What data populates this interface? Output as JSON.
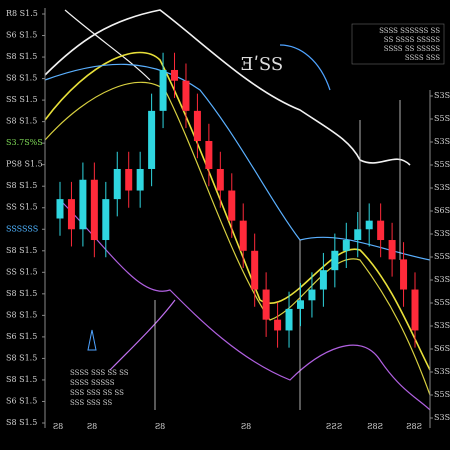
{
  "chart_data": {
    "type": "candlestick",
    "title": "ƎʹSS",
    "note_lines": [
      "SSSS SSSSSS SS",
      "SS SSSS SSSSS",
      "SSSS SS SSSSS",
      "SSSS SSS"
    ],
    "footnote_lines": [
      "SSSS SSS SS SS",
      "SSSS SSSSS",
      "SSS SSS SS SS",
      "SSS SSS SS"
    ],
    "x_labels": [
      "Ƨ8",
      "Ƨ8",
      "Ƨ8",
      "Ƨ8",
      "ƧƧƧ",
      "Ƨ8Ƨ",
      "Ƨ8Ƨ"
    ],
    "ylim": [
      1,
      20
    ],
    "yticks": [
      {
        "value": 20,
        "label": "R8 S1.5"
      },
      {
        "value": 19,
        "label": "S6 S1.5"
      },
      {
        "value": 18,
        "label": "S8 S1.5"
      },
      {
        "value": 17,
        "label": "S8 S1.5"
      },
      {
        "value": 16,
        "label": "SS S1.5"
      },
      {
        "value": 15,
        "label": "S8 S1.5"
      },
      {
        "value": 14,
        "label": "S3.7S%S",
        "color": "#7ed957"
      },
      {
        "value": 13,
        "label": "PS8 S1.5"
      },
      {
        "value": 12,
        "label": "S8 S1.5"
      },
      {
        "value": 11,
        "label": "SS S1.5"
      },
      {
        "value": 10,
        "label": "SSSSSS",
        "color": "#4fb3ff"
      },
      {
        "value": 9,
        "label": "S8 S1.5"
      },
      {
        "value": 8,
        "label": "SS S1.5"
      },
      {
        "value": 7,
        "label": "S8 S1.5"
      },
      {
        "value": 6,
        "label": "S8 S1.5"
      },
      {
        "value": 5,
        "label": "S6 S1.5"
      },
      {
        "value": 4,
        "label": "S8 S1.5"
      },
      {
        "value": 3,
        "label": "S8 S1.5"
      },
      {
        "value": 2,
        "label": "S6 S1.5"
      },
      {
        "value": 1,
        "label": "S8 S1.5"
      }
    ],
    "y2lim": [
      1,
      15
    ],
    "y2ticks": [
      {
        "value": 15,
        "label": "S3S"
      },
      {
        "value": 14,
        "label": "S5S"
      },
      {
        "value": 13,
        "label": "S3S"
      },
      {
        "value": 12,
        "label": "S5S"
      },
      {
        "value": 11,
        "label": "S3S"
      },
      {
        "value": 10,
        "label": "S6S"
      },
      {
        "value": 9,
        "label": "S3S"
      },
      {
        "value": 8,
        "label": "S5S"
      },
      {
        "value": 7,
        "label": "S3S"
      },
      {
        "value": 6,
        "label": "S5S"
      },
      {
        "value": 5,
        "label": "S3S"
      },
      {
        "value": 4,
        "label": "S6S"
      },
      {
        "value": 3,
        "label": "S3S"
      },
      {
        "value": 2,
        "label": "S5S"
      },
      {
        "value": 1,
        "label": "S3S"
      }
    ],
    "up_color": "#2fd6e0",
    "down_color": "#ff2a3a",
    "open": [
      10.5,
      11.4,
      10.0,
      12.3,
      9.5,
      11.4,
      12.8,
      11.8,
      12.8,
      15.5,
      17.4,
      16.9,
      15.5,
      14.1,
      12.8,
      11.8,
      10.4,
      9.0,
      7.2,
      5.8,
      5.3,
      6.3,
      6.7,
      7.2,
      8.1,
      9.0,
      9.5,
      10.0,
      10.4,
      9.5,
      8.6,
      7.2
    ],
    "high": [
      12.2,
      12.2,
      13.1,
      13.1,
      12.2,
      13.6,
      13.6,
      13.6,
      16.3,
      18.2,
      18.2,
      17.7,
      16.3,
      14.9,
      13.6,
      12.6,
      11.2,
      9.8,
      8.0,
      6.6,
      7.1,
      7.5,
      8.0,
      8.9,
      9.8,
      10.3,
      10.8,
      11.2,
      11.2,
      10.3,
      9.4,
      8.0
    ],
    "low": [
      9.7,
      9.2,
      9.2,
      8.7,
      8.7,
      10.6,
      11.0,
      11.0,
      12.0,
      14.7,
      16.1,
      14.7,
      13.3,
      12.0,
      11.0,
      9.6,
      8.2,
      6.4,
      5.0,
      4.5,
      4.5,
      5.5,
      5.9,
      6.4,
      7.3,
      8.2,
      8.7,
      9.2,
      8.7,
      7.8,
      6.4,
      4.5
    ],
    "close": [
      11.4,
      10.0,
      12.3,
      9.5,
      11.4,
      12.8,
      11.8,
      12.8,
      15.5,
      17.4,
      16.9,
      15.5,
      14.1,
      12.8,
      11.8,
      10.4,
      9.0,
      7.2,
      5.8,
      5.3,
      6.3,
      6.7,
      7.2,
      8.1,
      9.0,
      9.5,
      10.0,
      10.4,
      9.5,
      8.6,
      7.2,
      5.3
    ]
  }
}
